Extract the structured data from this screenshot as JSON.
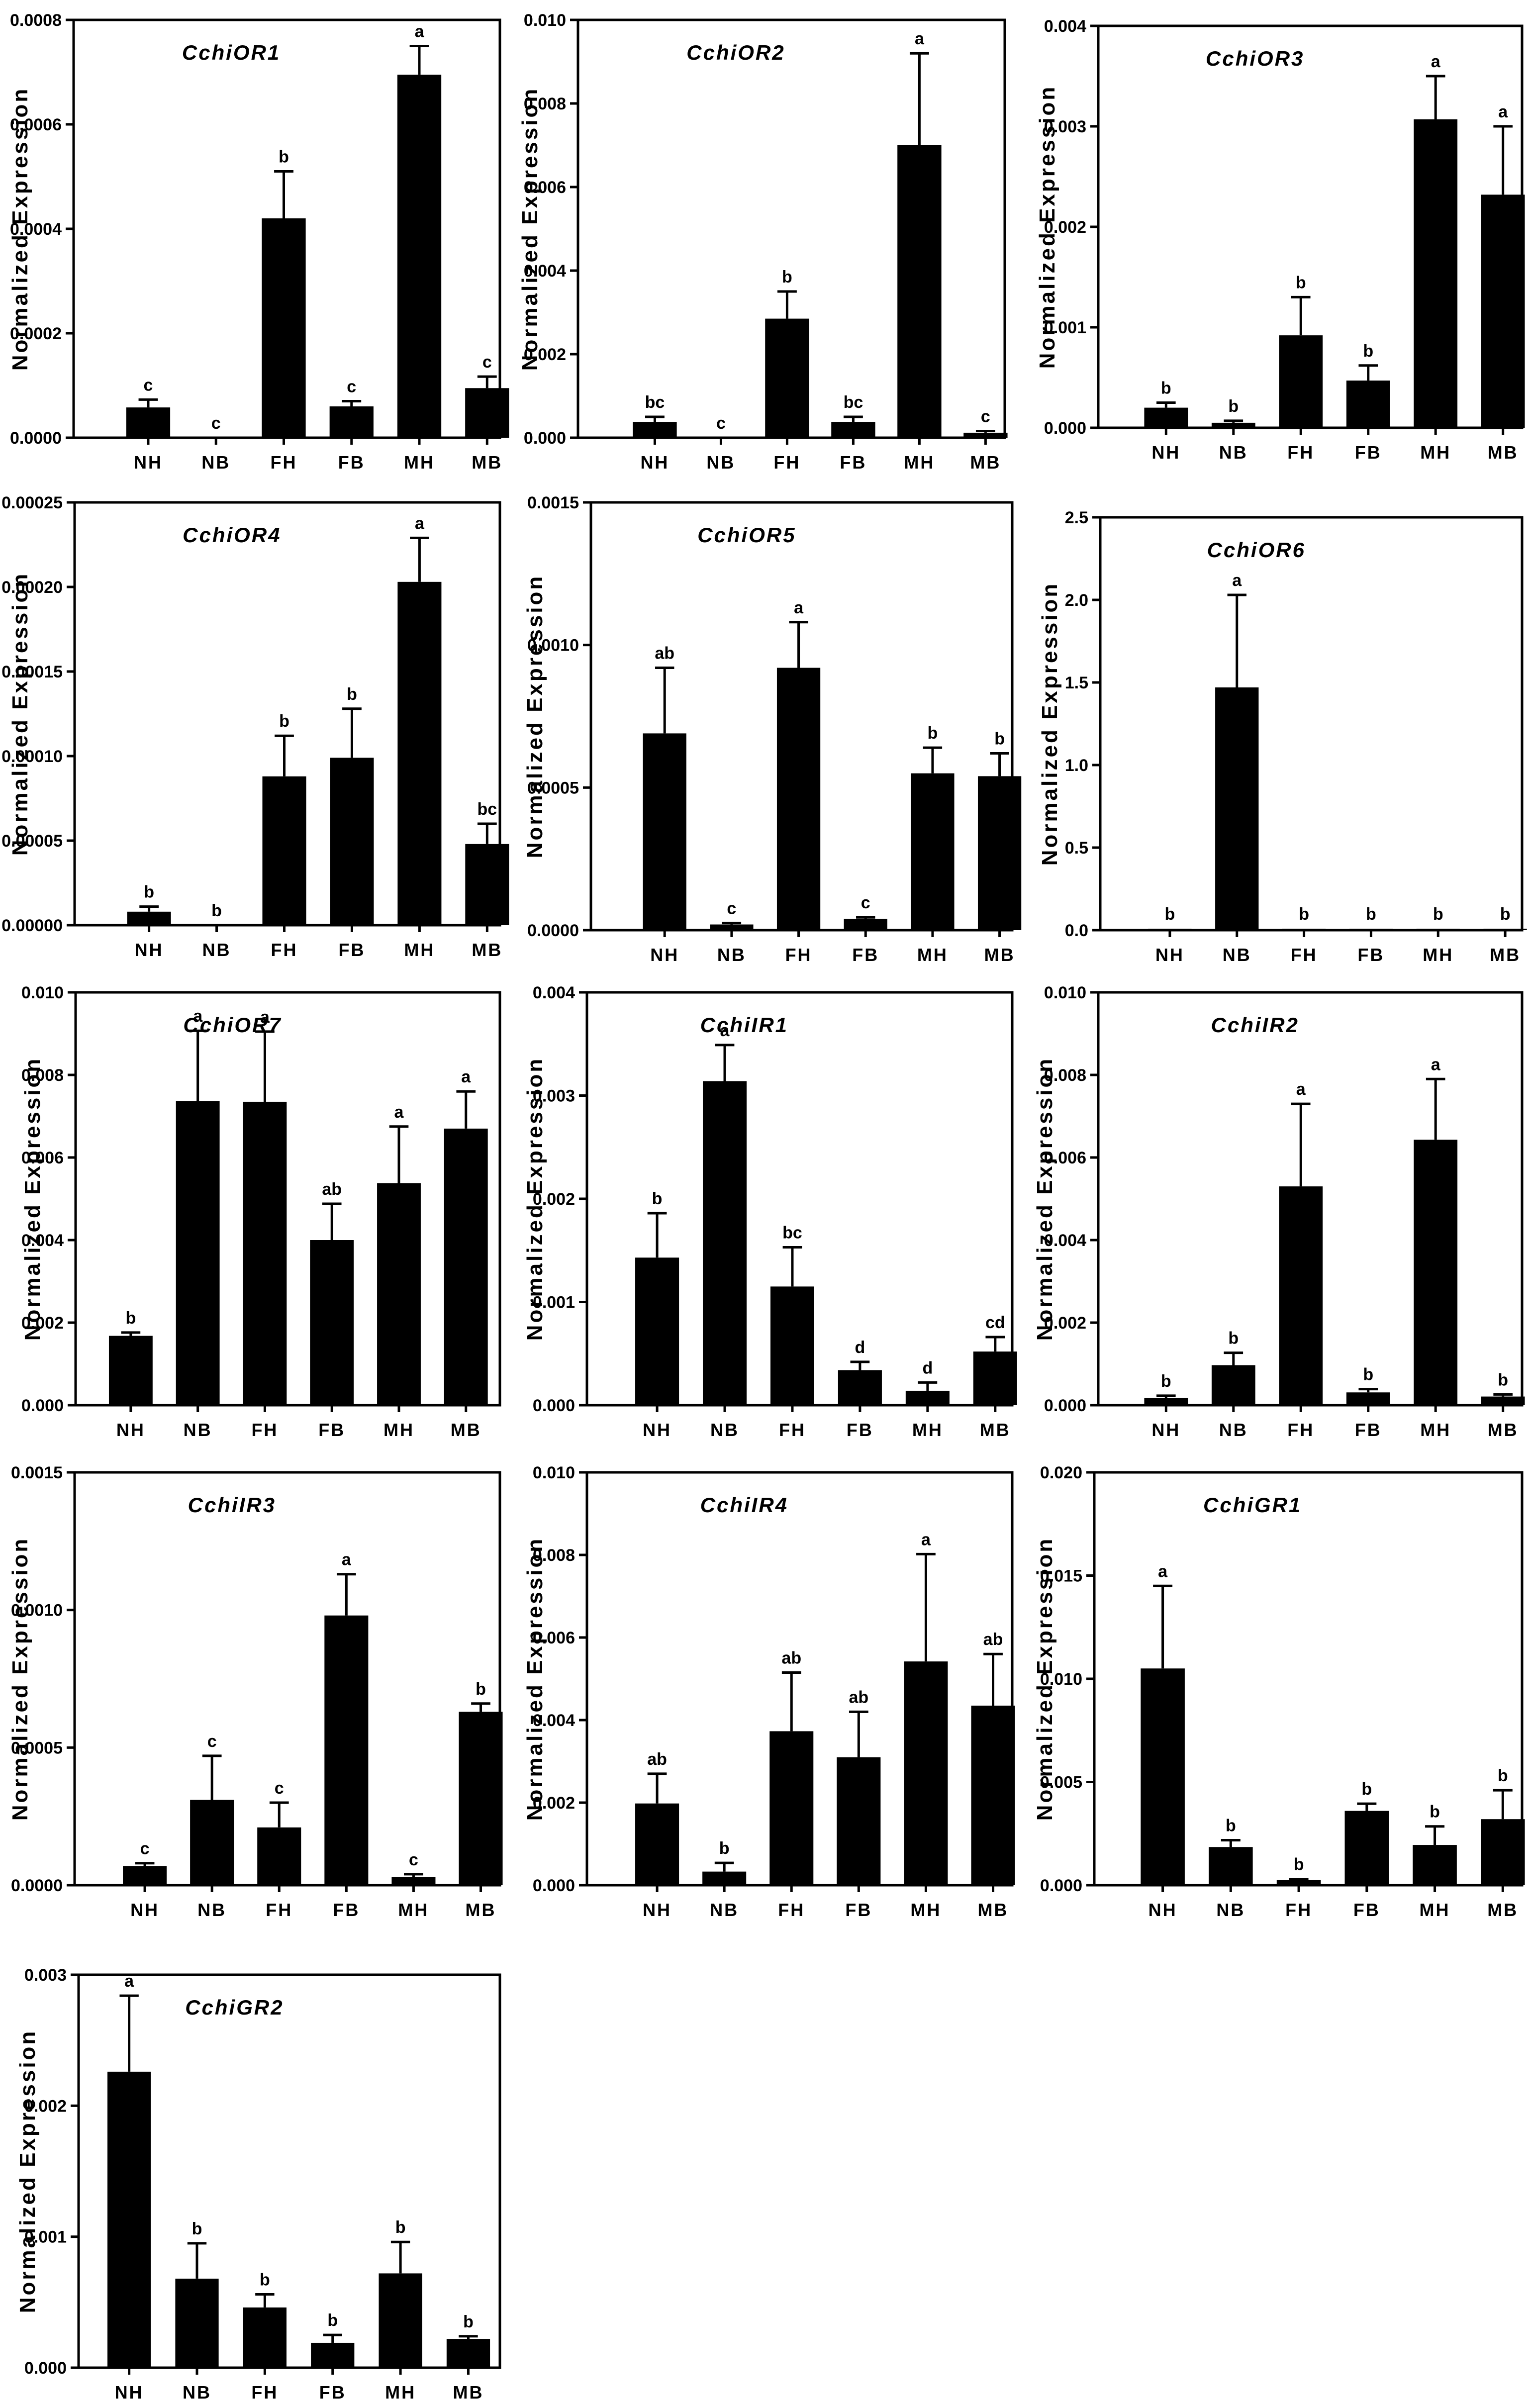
{
  "ylabel": "Normalized Expression",
  "chart_data": [
    {
      "type": "bar",
      "title": "CchiOR1",
      "categories": [
        "NH",
        "NB",
        "FH",
        "FB",
        "MH",
        "MB"
      ],
      "values": [
        5.8e-05,
        0,
        0.00042,
        6e-05,
        0.000695,
        9.5e-05
      ],
      "errors": [
        1.5e-05,
        0,
        9e-05,
        1e-05,
        5.5e-05,
        2.2e-05
      ],
      "letters": [
        "c",
        "c",
        "b",
        "c",
        "a",
        "c"
      ],
      "ylim": [
        0,
        0.0008
      ],
      "yticks": [
        "0.0000",
        "0.0002",
        "0.0004",
        "0.0006",
        "0.0008"
      ],
      "xlabel": "",
      "grid": false
    },
    {
      "type": "bar",
      "title": "CchiOR2",
      "categories": [
        "NH",
        "NB",
        "FH",
        "FB",
        "MH",
        "MB"
      ],
      "values": [
        0.00038,
        0,
        0.00285,
        0.00038,
        0.007,
        0.00012
      ],
      "errors": [
        0.00012,
        0,
        0.00065,
        0.00012,
        0.0022,
        4e-05
      ],
      "letters": [
        "bc",
        "c",
        "b",
        "bc",
        "a",
        "c"
      ],
      "ylim": [
        0,
        0.01
      ],
      "yticks": [
        "0.000",
        "0.002",
        "0.004",
        "0.006",
        "0.008",
        "0.010"
      ],
      "xlabel": "",
      "grid": false
    },
    {
      "type": "bar",
      "title": "CchiOR3",
      "categories": [
        "NH",
        "NB",
        "FH",
        "FB",
        "MH",
        "MB"
      ],
      "values": [
        0.0002,
        5e-05,
        0.00092,
        0.00047,
        0.00307,
        0.00232
      ],
      "errors": [
        5e-05,
        2e-05,
        0.00038,
        0.00015,
        0.00043,
        0.00068
      ],
      "letters": [
        "b",
        "b",
        "b",
        "b",
        "a",
        "a"
      ],
      "ylim": [
        0,
        0.004
      ],
      "yticks": [
        "0.000",
        "0.001",
        "0.002",
        "0.003",
        "0.004"
      ],
      "xlabel": "",
      "grid": false
    },
    {
      "type": "bar",
      "title": "CchiOR4",
      "categories": [
        "NH",
        "NB",
        "FH",
        "FB",
        "MH",
        "MB"
      ],
      "values": [
        8e-06,
        0,
        8.8e-05,
        9.9e-05,
        0.000203,
        4.8e-05
      ],
      "errors": [
        3e-06,
        0,
        2.4e-05,
        2.9e-05,
        2.6e-05,
        1.2e-05
      ],
      "letters": [
        "b",
        "b",
        "b",
        "b",
        "a",
        "bc"
      ],
      "ylim": [
        0,
        0.00025
      ],
      "yticks": [
        "0.00000",
        "0.00005",
        "0.00010",
        "0.00015",
        "0.00020",
        "0.00025"
      ],
      "xlabel": "",
      "grid": false
    },
    {
      "type": "bar",
      "title": "CchiOR5",
      "categories": [
        "NH",
        "NB",
        "FH",
        "FB",
        "MH",
        "MB"
      ],
      "values": [
        0.00069,
        2e-05,
        0.00092,
        4e-05,
        0.00055,
        0.00054
      ],
      "errors": [
        0.00023,
        5e-06,
        0.00016,
        5e-06,
        9e-05,
        8e-05
      ],
      "letters": [
        "ab",
        "c",
        "a",
        "c",
        "b",
        "b"
      ],
      "ylim": [
        0,
        0.0015
      ],
      "yticks": [
        "0.0000",
        "0.0005",
        "0.0010",
        "0.0015"
      ],
      "xlabel": "",
      "grid": false
    },
    {
      "type": "bar",
      "title": "CchiOR6",
      "categories": [
        "NH",
        "NB",
        "FH",
        "FB",
        "MH",
        "MB"
      ],
      "values": [
        0.005,
        1.47,
        0.005,
        0.003,
        0.005,
        0.003
      ],
      "errors": [
        0,
        0.56,
        0,
        0,
        0,
        0
      ],
      "letters": [
        "b",
        "a",
        "b",
        "b",
        "b",
        "b"
      ],
      "ylim": [
        0,
        2.5
      ],
      "yticks": [
        "0.0",
        "0.5",
        "1.0",
        "1.5",
        "2.0",
        "2.5"
      ],
      "xlabel": "",
      "grid": false
    },
    {
      "type": "bar",
      "title": "CchiOR7",
      "categories": [
        "NH",
        "NB",
        "FH",
        "FB",
        "MH",
        "MB"
      ],
      "values": [
        0.00168,
        0.00737,
        0.00735,
        0.004,
        0.00538,
        0.0067
      ],
      "errors": [
        8e-05,
        0.0017,
        0.0017,
        0.00088,
        0.00137,
        0.0009
      ],
      "letters": [
        "b",
        "a",
        "a",
        "ab",
        "a",
        "a"
      ],
      "ylim": [
        0,
        0.01
      ],
      "yticks": [
        "0.000",
        "0.002",
        "0.004",
        "0.006",
        "0.008",
        "0.010"
      ],
      "xlabel": "",
      "grid": false
    },
    {
      "type": "bar",
      "title": "CchiIR1",
      "categories": [
        "NH",
        "NB",
        "FH",
        "FB",
        "MH",
        "MB"
      ],
      "values": [
        0.00143,
        0.00314,
        0.00115,
        0.00034,
        0.00014,
        0.00052
      ],
      "errors": [
        0.00043,
        0.00035,
        0.00038,
        8e-05,
        8e-05,
        0.00014
      ],
      "letters": [
        "b",
        "a",
        "bc",
        "d",
        "d",
        "cd"
      ],
      "ylim": [
        0,
        0.004
      ],
      "yticks": [
        "0.000",
        "0.001",
        "0.002",
        "0.003",
        "0.004"
      ],
      "xlabel": "",
      "grid": false
    },
    {
      "type": "bar",
      "title": "CchiIR2",
      "categories": [
        "NH",
        "NB",
        "FH",
        "FB",
        "MH",
        "MB"
      ],
      "values": [
        0.00018,
        0.00097,
        0.0053,
        0.00031,
        0.00643,
        0.00021
      ],
      "errors": [
        5e-05,
        0.0003,
        0.002,
        8e-05,
        0.00147,
        5e-05
      ],
      "letters": [
        "b",
        "b",
        "a",
        "b",
        "a",
        "b"
      ],
      "ylim": [
        0,
        0.01
      ],
      "yticks": [
        "0.000",
        "0.002",
        "0.004",
        "0.006",
        "0.008",
        "0.010"
      ],
      "xlabel": "",
      "grid": false
    },
    {
      "type": "bar",
      "title": "CchiIR3",
      "categories": [
        "NH",
        "NB",
        "FH",
        "FB",
        "MH",
        "MB"
      ],
      "values": [
        7e-05,
        0.00031,
        0.00021,
        0.00098,
        3e-05,
        0.00063
      ],
      "errors": [
        1e-05,
        0.00016,
        9e-05,
        0.00015,
        1e-05,
        3e-05
      ],
      "letters": [
        "c",
        "c",
        "c",
        "a",
        "c",
        "b"
      ],
      "ylim": [
        0,
        0.0015
      ],
      "yticks": [
        "0.0000",
        "0.0005",
        "0.0010",
        "0.0015"
      ],
      "xlabel": "",
      "grid": false
    },
    {
      "type": "bar",
      "title": "CchiIR4",
      "categories": [
        "NH",
        "NB",
        "FH",
        "FB",
        "MH",
        "MB"
      ],
      "values": [
        0.00198,
        0.00033,
        0.00373,
        0.0031,
        0.00542,
        0.00435
      ],
      "errors": [
        0.00072,
        0.00021,
        0.00142,
        0.0011,
        0.0026,
        0.00125
      ],
      "letters": [
        "ab",
        "b",
        "ab",
        "ab",
        "a",
        "ab"
      ],
      "ylim": [
        0,
        0.01
      ],
      "yticks": [
        "0.000",
        "0.002",
        "0.004",
        "0.006",
        "0.008",
        "0.010"
      ],
      "xlabel": "",
      "grid": false
    },
    {
      "type": "bar",
      "title": "CchiGR1",
      "categories": [
        "NH",
        "NB",
        "FH",
        "FB",
        "MH",
        "MB"
      ],
      "values": [
        0.0105,
        0.00185,
        0.00025,
        0.0036,
        0.00195,
        0.0032
      ],
      "errors": [
        0.004,
        0.00033,
        5e-05,
        0.00035,
        0.0009,
        0.0014
      ],
      "letters": [
        "a",
        "b",
        "b",
        "b",
        "b",
        "b"
      ],
      "ylim": [
        0,
        0.02
      ],
      "yticks": [
        "0.000",
        "0.005",
        "0.010",
        "0.015",
        "0.020"
      ],
      "xlabel": "",
      "grid": false
    },
    {
      "type": "bar",
      "title": "CchiGR2",
      "categories": [
        "NH",
        "NB",
        "FH",
        "FB",
        "MH",
        "MB"
      ],
      "values": [
        0.00226,
        0.00068,
        0.00046,
        0.00019,
        0.00072,
        0.00022
      ],
      "errors": [
        0.00058,
        0.00027,
        0.0001,
        6e-05,
        0.00024,
        2e-05
      ],
      "letters": [
        "a",
        "b",
        "b",
        "b",
        "b",
        "b"
      ],
      "ylim": [
        0,
        0.003
      ],
      "yticks": [
        "0.000",
        "0.001",
        "0.002",
        "0.003"
      ],
      "xlabel": "",
      "grid": false
    }
  ]
}
